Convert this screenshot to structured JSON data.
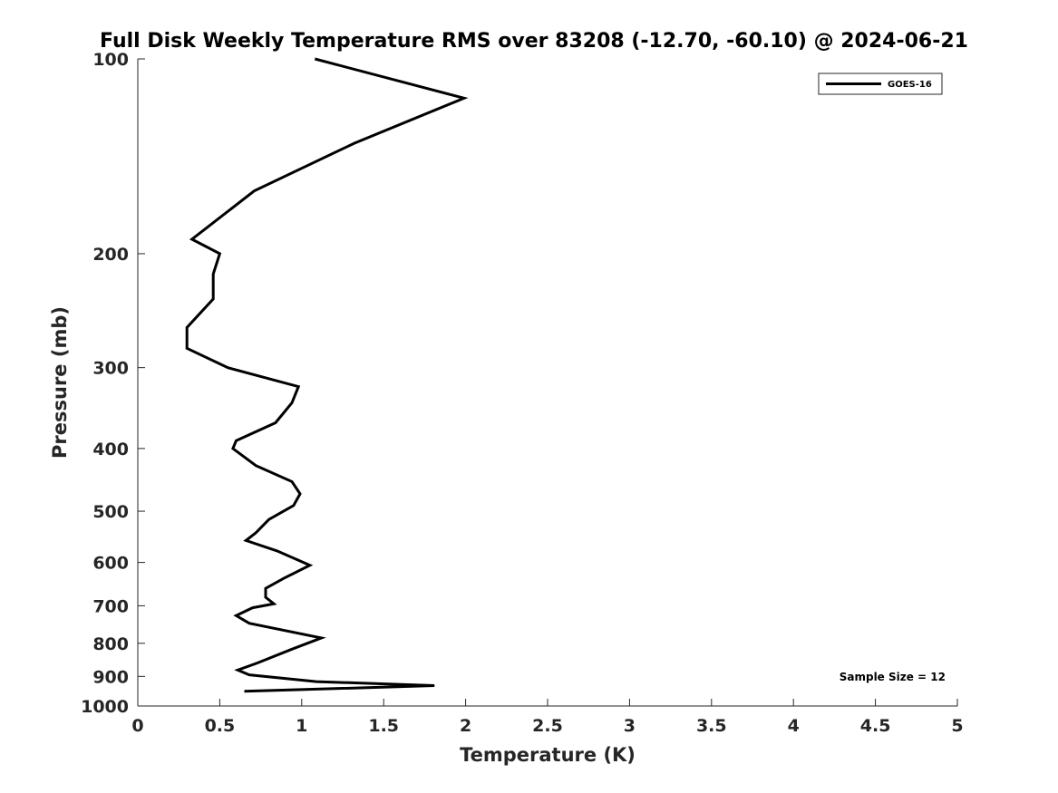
{
  "chart_data": {
    "type": "line",
    "title": "Full Disk Weekly Temperature RMS over 83208 (-12.70, -60.10) @ 2024-06-21",
    "xlabel": "Temperature (K)",
    "ylabel": "Pressure (mb)",
    "xlim": [
      0,
      5
    ],
    "ylim": [
      100,
      1000
    ],
    "y_scale": "log",
    "y_reversed": true,
    "xticks": [
      "0",
      "0.5",
      "1",
      "1.5",
      "2",
      "2.5",
      "3",
      "3.5",
      "4",
      "4.5",
      "5"
    ],
    "yticks": [
      "100",
      "200",
      "300",
      "400",
      "500",
      "600",
      "700",
      "800",
      "900",
      "1000"
    ],
    "grid": false,
    "legend_position": "top-right",
    "annotation": "Sample Size = 12",
    "series": [
      {
        "name": "GOES-16",
        "color": "#000000",
        "x": [
          1.08,
          1.99,
          1.32,
          0.71,
          0.33,
          0.5,
          0.46,
          0.46,
          0.3,
          0.3,
          0.55,
          0.98,
          0.94,
          0.84,
          0.6,
          0.58,
          0.72,
          0.94,
          0.99,
          0.95,
          0.8,
          0.72,
          0.66,
          0.85,
          1.05,
          0.89,
          0.78,
          0.78,
          0.83,
          0.7,
          0.6,
          0.68,
          1.12,
          0.94,
          0.73,
          0.61,
          0.68,
          1.09,
          1.81,
          0.65
        ],
        "y": [
          100,
          115,
          135,
          160,
          190,
          200,
          215,
          235,
          260,
          280,
          300,
          321,
          340,
          365,
          389,
          400,
          425,
          450,
          470,
          490,
          515,
          540,
          555,
          576,
          606,
          635,
          658,
          679,
          695,
          705,
          725,
          745,
          785,
          817,
          858,
          880,
          895,
          917,
          930,
          949
        ]
      }
    ]
  }
}
